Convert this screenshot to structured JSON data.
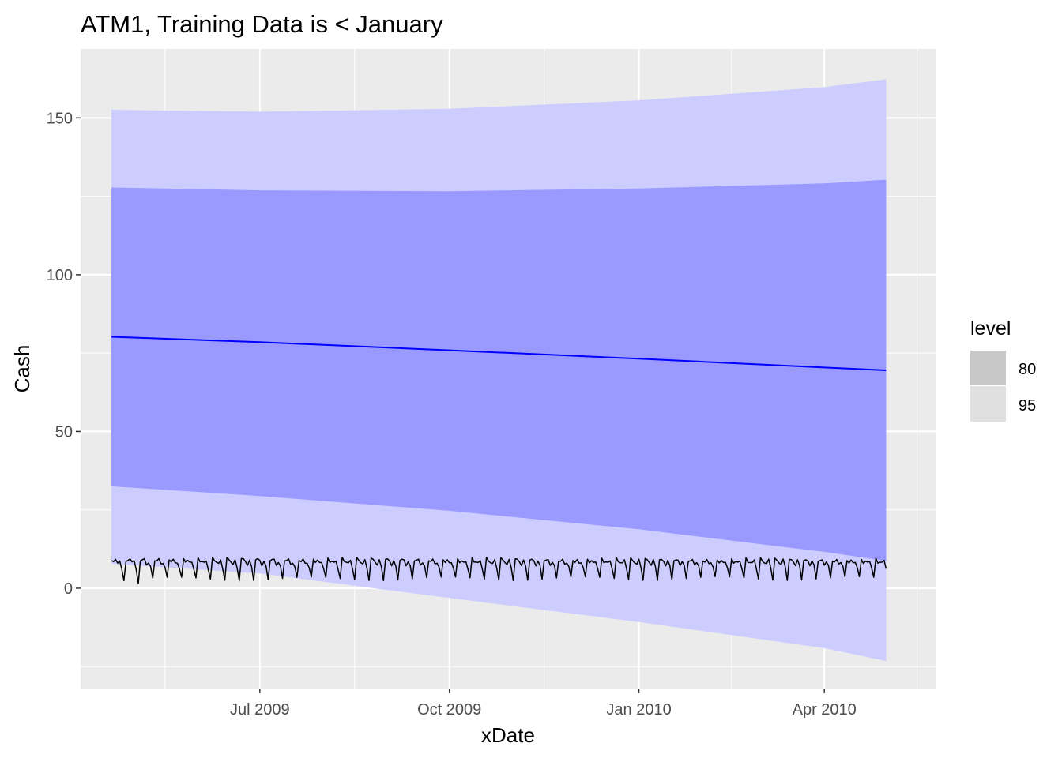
{
  "chart_data": {
    "type": "area",
    "title": "ATM1, Training Data is < January",
    "xlabel": "xDate",
    "ylabel": "Cash",
    "x_range": [
      "2009-04-05",
      "2010-05-25"
    ],
    "y_range": [
      -32,
      172
    ],
    "x_ticks": [
      {
        "date": "2009-07-01",
        "label": "Jul 2009"
      },
      {
        "date": "2009-10-01",
        "label": "Oct 2009"
      },
      {
        "date": "2010-01-01",
        "label": "Jan 2010"
      },
      {
        "date": "2010-04-01",
        "label": "Apr 2010"
      }
    ],
    "x_minor_ticks": [
      "2009-05-16",
      "2009-08-16",
      "2009-11-16",
      "2010-02-15",
      "2010-05-16"
    ],
    "y_ticks": [
      0,
      50,
      100,
      150
    ],
    "y_minor_ticks": [
      -25,
      25,
      75,
      125
    ],
    "grid": true,
    "background": "#ebebeb",
    "legend": {
      "title": "level",
      "position": "right",
      "entries": [
        {
          "label": "80",
          "color": "#c8c8c8"
        },
        {
          "label": "95",
          "color": "#e0e0e0"
        }
      ]
    },
    "forecast": {
      "x": [
        "2009-04-20",
        "2009-07-01",
        "2009-10-01",
        "2010-01-01",
        "2010-04-01",
        "2010-05-01"
      ],
      "mean": [
        80.2,
        78.5,
        75.9,
        73.2,
        70.4,
        69.5
      ],
      "lower80": [
        32.5,
        29.4,
        24.7,
        18.8,
        11.6,
        8.7
      ],
      "upper80": [
        127.8,
        126.9,
        126.6,
        127.5,
        129.1,
        130.3
      ],
      "lower95": [
        7.8,
        4.7,
        -3.1,
        -10.8,
        -19.1,
        -23.2
      ],
      "upper95": [
        152.6,
        152.0,
        152.9,
        155.6,
        159.8,
        162.3
      ],
      "mean_color": "#0000ff",
      "band80_color": "#9999ff",
      "band95_color": "#ccccff"
    },
    "series": [
      {
        "start": "2009-04-20",
        "end": "2010-05-01",
        "color": "#000000",
        "weekly_pattern": [
          8.8,
          8.6,
          9.0,
          8.2,
          8.9,
          6.5,
          2.6
        ],
        "values_sample": [
          8.8,
          8.5,
          9.2,
          8.0,
          8.7,
          6.1,
          2.4,
          8.5,
          8.9,
          9.3,
          8.4,
          8.8,
          5.9,
          1.5
        ]
      }
    ]
  }
}
